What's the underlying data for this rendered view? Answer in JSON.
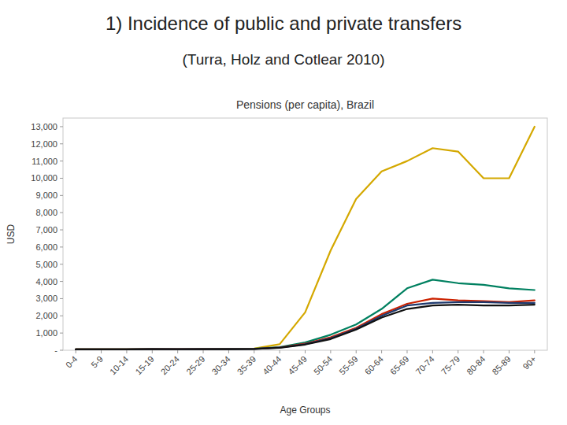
{
  "chart_data": {
    "type": "line",
    "title": "1) Incidence of public and private transfers",
    "subtitle": "(Turra, Holz and Cotlear 2010)",
    "chart_title": "Pensions (per capita), Brazil",
    "x_label": "Age Groups",
    "y_label": "USD",
    "categories": [
      "0-4",
      "5-9",
      "10-14",
      "15-19",
      "20-24",
      "25-29",
      "30-34",
      "35-39",
      "40-44",
      "45-49",
      "50-54",
      "55-59",
      "60-64",
      "65-69",
      "70-74",
      "75-79",
      "80-84",
      "85-89",
      "90+"
    ],
    "series": [
      {
        "color": "#D4A800",
        "values": [
          50,
          55,
          55,
          60,
          60,
          65,
          70,
          100,
          350,
          2200,
          5800,
          8800,
          10400,
          11000,
          11750,
          11550,
          10000,
          10000,
          13000
        ]
      },
      {
        "color": "#008060",
        "values": [
          50,
          55,
          55,
          60,
          60,
          65,
          70,
          90,
          180,
          450,
          900,
          1500,
          2400,
          3600,
          4100,
          3900,
          3800,
          3600,
          3500
        ]
      },
      {
        "color": "#CC2200",
        "values": [
          50,
          55,
          55,
          60,
          60,
          65,
          68,
          80,
          160,
          380,
          750,
          1300,
          2100,
          2700,
          3000,
          2900,
          2850,
          2800,
          2900
        ]
      },
      {
        "color": "#1F3A6E",
        "values": [
          50,
          55,
          55,
          60,
          60,
          62,
          65,
          78,
          150,
          350,
          700,
          1250,
          2000,
          2600,
          2750,
          2800,
          2800,
          2750,
          2750
        ]
      },
      {
        "color": "#111111",
        "values": [
          50,
          55,
          55,
          60,
          58,
          60,
          63,
          75,
          140,
          330,
          650,
          1200,
          1900,
          2400,
          2600,
          2650,
          2600,
          2600,
          2650
        ]
      }
    ],
    "ylim": [
      0,
      13500
    ],
    "yticks": [
      {
        "value": 0,
        "label": "-"
      },
      {
        "value": 1000,
        "label": "1,000"
      },
      {
        "value": 2000,
        "label": "2,000"
      },
      {
        "value": 3000,
        "label": "3,000"
      },
      {
        "value": 4000,
        "label": "4,000"
      },
      {
        "value": 5000,
        "label": "5,000"
      },
      {
        "value": 6000,
        "label": "6,000"
      },
      {
        "value": 7000,
        "label": "7,000"
      },
      {
        "value": 8000,
        "label": "8,000"
      },
      {
        "value": 9000,
        "label": "9,000"
      },
      {
        "value": 10000,
        "label": "10,000"
      },
      {
        "value": 11000,
        "label": "11,000"
      },
      {
        "value": 12000,
        "label": "12,000"
      },
      {
        "value": 13000,
        "label": "13,000"
      }
    ],
    "grid": false
  }
}
